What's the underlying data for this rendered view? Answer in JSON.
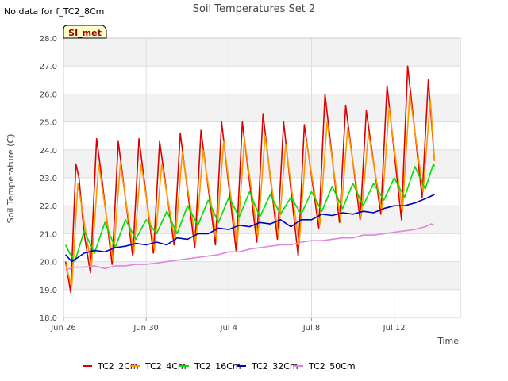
{
  "chart_data": {
    "type": "line",
    "title": "Soil Temperatures Set 2",
    "note": "No data for f_TC2_8Cm",
    "badge": "SI_met",
    "xlabel": "Time",
    "ylabel": "Soil Temperature (C)",
    "xlim": [
      0,
      19.2
    ],
    "ylim": [
      18.0,
      28.0
    ],
    "yticks": [
      "18.0",
      "19.0",
      "20.0",
      "21.0",
      "22.0",
      "23.0",
      "24.0",
      "25.0",
      "26.0",
      "27.0",
      "28.0"
    ],
    "xticks": [
      {
        "day": 0,
        "label": "Jun 26"
      },
      {
        "day": 4,
        "label": "Jun 30"
      },
      {
        "day": 8,
        "label": "Jul 4"
      },
      {
        "day": 12,
        "label": "Jul 8"
      },
      {
        "day": 16,
        "label": "Jul 12"
      }
    ],
    "grid": true,
    "legend_position": "bottom",
    "series": [
      {
        "name": "TC2_2Cm",
        "color": "#dd0000",
        "points": [
          [
            0.1,
            20.0
          ],
          [
            0.35,
            18.9
          ],
          [
            0.6,
            23.5
          ],
          [
            0.75,
            23.0
          ],
          [
            1.0,
            21.0
          ],
          [
            1.3,
            19.6
          ],
          [
            1.6,
            24.4
          ],
          [
            1.85,
            23.0
          ],
          [
            2.35,
            19.9
          ],
          [
            2.65,
            24.3
          ],
          [
            3.35,
            20.2
          ],
          [
            3.65,
            24.4
          ],
          [
            4.35,
            20.3
          ],
          [
            4.65,
            24.3
          ],
          [
            5.35,
            20.6
          ],
          [
            5.65,
            24.6
          ],
          [
            6.35,
            20.5
          ],
          [
            6.65,
            24.7
          ],
          [
            7.35,
            20.6
          ],
          [
            7.65,
            25.0
          ],
          [
            8.35,
            20.4
          ],
          [
            8.65,
            25.0
          ],
          [
            9.35,
            20.7
          ],
          [
            9.65,
            25.3
          ],
          [
            10.35,
            20.8
          ],
          [
            10.65,
            25.0
          ],
          [
            11.35,
            20.2
          ],
          [
            11.65,
            24.9
          ],
          [
            12.35,
            21.2
          ],
          [
            12.65,
            26.0
          ],
          [
            13.35,
            21.4
          ],
          [
            13.65,
            25.6
          ],
          [
            14.35,
            21.5
          ],
          [
            14.65,
            25.4
          ],
          [
            15.35,
            21.7
          ],
          [
            15.65,
            26.3
          ],
          [
            16.35,
            21.5
          ],
          [
            16.65,
            27.0
          ],
          [
            17.35,
            22.3
          ],
          [
            17.65,
            26.5
          ],
          [
            17.95,
            23.6
          ]
        ]
      },
      {
        "name": "TC2_4Cm",
        "color": "#ff9900",
        "points": [
          [
            0.1,
            19.9
          ],
          [
            0.4,
            19.1
          ],
          [
            0.7,
            22.8
          ],
          [
            1.35,
            19.8
          ],
          [
            1.7,
            23.5
          ],
          [
            2.4,
            20.0
          ],
          [
            2.75,
            23.5
          ],
          [
            3.4,
            20.3
          ],
          [
            3.75,
            23.5
          ],
          [
            4.4,
            20.4
          ],
          [
            4.75,
            23.5
          ],
          [
            5.4,
            20.7
          ],
          [
            5.75,
            23.9
          ],
          [
            6.4,
            20.7
          ],
          [
            6.75,
            24.0
          ],
          [
            7.4,
            20.8
          ],
          [
            7.75,
            24.3
          ],
          [
            8.4,
            20.6
          ],
          [
            8.75,
            24.4
          ],
          [
            9.4,
            20.9
          ],
          [
            9.75,
            24.5
          ],
          [
            10.4,
            20.9
          ],
          [
            10.75,
            24.2
          ],
          [
            11.4,
            20.6
          ],
          [
            11.75,
            24.3
          ],
          [
            12.4,
            21.3
          ],
          [
            12.75,
            25.0
          ],
          [
            13.4,
            21.5
          ],
          [
            13.75,
            24.8
          ],
          [
            14.4,
            21.6
          ],
          [
            14.75,
            24.6
          ],
          [
            15.4,
            21.8
          ],
          [
            15.75,
            25.5
          ],
          [
            16.4,
            21.8
          ],
          [
            16.75,
            26.0
          ],
          [
            17.4,
            22.5
          ],
          [
            17.75,
            25.8
          ],
          [
            17.95,
            23.6
          ]
        ]
      },
      {
        "name": "TC2_16Cm",
        "color": "#00dd00",
        "points": [
          [
            0.1,
            20.6
          ],
          [
            0.3,
            20.3
          ],
          [
            0.55,
            20.0
          ],
          [
            1.0,
            21.1
          ],
          [
            1.5,
            20.3
          ],
          [
            2.0,
            21.4
          ],
          [
            2.5,
            20.5
          ],
          [
            3.0,
            21.5
          ],
          [
            3.5,
            20.8
          ],
          [
            4.0,
            21.5
          ],
          [
            4.5,
            21.0
          ],
          [
            5.0,
            21.8
          ],
          [
            5.5,
            21.0
          ],
          [
            6.0,
            22.0
          ],
          [
            6.5,
            21.3
          ],
          [
            7.0,
            22.2
          ],
          [
            7.5,
            21.4
          ],
          [
            8.0,
            22.3
          ],
          [
            8.5,
            21.6
          ],
          [
            9.0,
            22.5
          ],
          [
            9.5,
            21.6
          ],
          [
            10.0,
            22.4
          ],
          [
            10.5,
            21.7
          ],
          [
            11.0,
            22.3
          ],
          [
            11.5,
            21.7
          ],
          [
            12.0,
            22.5
          ],
          [
            12.5,
            21.8
          ],
          [
            13.0,
            22.7
          ],
          [
            13.5,
            21.9
          ],
          [
            14.0,
            22.8
          ],
          [
            14.5,
            22.0
          ],
          [
            15.0,
            22.8
          ],
          [
            15.5,
            22.2
          ],
          [
            16.0,
            23.0
          ],
          [
            16.5,
            22.3
          ],
          [
            17.0,
            23.4
          ],
          [
            17.5,
            22.6
          ],
          [
            17.9,
            23.5
          ],
          [
            17.95,
            23.4
          ]
        ]
      },
      {
        "name": "TC2_32Cm",
        "color": "#0000bb",
        "points": [
          [
            0.1,
            20.25
          ],
          [
            0.4,
            20.0
          ],
          [
            1.0,
            20.3
          ],
          [
            1.5,
            20.4
          ],
          [
            2.0,
            20.35
          ],
          [
            2.5,
            20.5
          ],
          [
            3.0,
            20.55
          ],
          [
            3.5,
            20.65
          ],
          [
            4.0,
            20.6
          ],
          [
            4.5,
            20.7
          ],
          [
            5.0,
            20.6
          ],
          [
            5.5,
            20.85
          ],
          [
            6.0,
            20.8
          ],
          [
            6.5,
            21.0
          ],
          [
            7.0,
            21.0
          ],
          [
            7.5,
            21.2
          ],
          [
            8.0,
            21.15
          ],
          [
            8.5,
            21.3
          ],
          [
            9.0,
            21.25
          ],
          [
            9.5,
            21.4
          ],
          [
            10.0,
            21.35
          ],
          [
            10.5,
            21.5
          ],
          [
            11.0,
            21.25
          ],
          [
            11.5,
            21.5
          ],
          [
            12.0,
            21.5
          ],
          [
            12.5,
            21.7
          ],
          [
            13.0,
            21.65
          ],
          [
            13.5,
            21.75
          ],
          [
            14.0,
            21.7
          ],
          [
            14.5,
            21.8
          ],
          [
            15.0,
            21.75
          ],
          [
            15.5,
            21.9
          ],
          [
            16.0,
            22.0
          ],
          [
            16.5,
            22.0
          ],
          [
            17.0,
            22.1
          ],
          [
            17.5,
            22.25
          ],
          [
            17.95,
            22.4
          ]
        ]
      },
      {
        "name": "TC2_50Cm",
        "color": "#dd88dd",
        "points": [
          [
            0.1,
            19.7
          ],
          [
            0.5,
            19.8
          ],
          [
            1.0,
            19.8
          ],
          [
            1.5,
            19.85
          ],
          [
            2.0,
            19.75
          ],
          [
            2.5,
            19.85
          ],
          [
            3.0,
            19.85
          ],
          [
            3.5,
            19.9
          ],
          [
            4.0,
            19.9
          ],
          [
            4.5,
            19.95
          ],
          [
            5.0,
            20.0
          ],
          [
            5.5,
            20.05
          ],
          [
            6.0,
            20.1
          ],
          [
            6.5,
            20.15
          ],
          [
            7.0,
            20.2
          ],
          [
            7.5,
            20.25
          ],
          [
            8.0,
            20.35
          ],
          [
            8.5,
            20.35
          ],
          [
            9.0,
            20.45
          ],
          [
            9.5,
            20.5
          ],
          [
            10.0,
            20.55
          ],
          [
            10.5,
            20.6
          ],
          [
            11.0,
            20.6
          ],
          [
            11.5,
            20.7
          ],
          [
            12.0,
            20.75
          ],
          [
            12.5,
            20.75
          ],
          [
            13.0,
            20.8
          ],
          [
            13.5,
            20.85
          ],
          [
            14.0,
            20.85
          ],
          [
            14.5,
            20.95
          ],
          [
            15.0,
            20.95
          ],
          [
            15.5,
            21.0
          ],
          [
            16.0,
            21.05
          ],
          [
            16.5,
            21.1
          ],
          [
            17.0,
            21.15
          ],
          [
            17.5,
            21.25
          ],
          [
            17.8,
            21.35
          ],
          [
            17.95,
            21.3
          ]
        ]
      }
    ]
  }
}
